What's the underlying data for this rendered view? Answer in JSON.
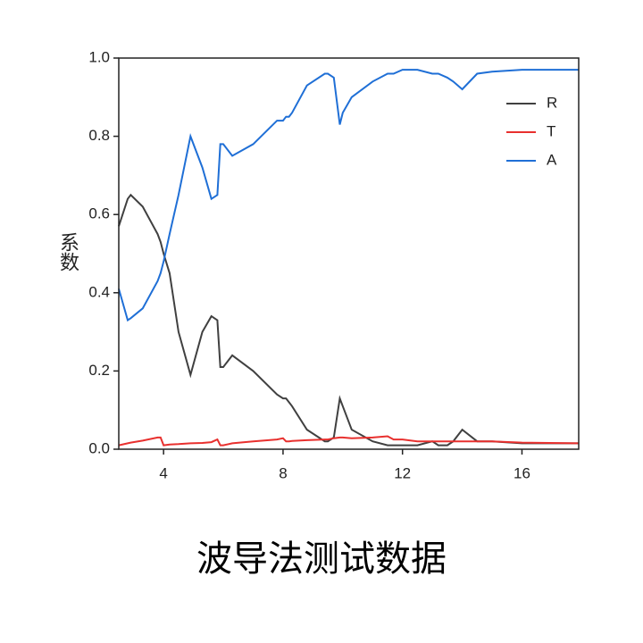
{
  "chart_data": {
    "type": "line",
    "title": "波导法测试数据",
    "y_label": "系数",
    "x": [
      2.5,
      2.8,
      2.9,
      3.3,
      3.8,
      3.9,
      4.0,
      4.2,
      4.5,
      4.9,
      5.3,
      5.6,
      5.8,
      5.9,
      6.0,
      6.3,
      7.0,
      7.8,
      8.0,
      8.1,
      8.2,
      8.3,
      8.8,
      9.4,
      9.5,
      9.7,
      9.9,
      10.0,
      10.3,
      11.0,
      11.5,
      11.7,
      12.0,
      12.5,
      13.0,
      13.2,
      13.5,
      13.7,
      14.0,
      14.5,
      15.0,
      16.0,
      17.9
    ],
    "series": [
      {
        "name": "R",
        "color": "#404040",
        "values": [
          0.57,
          0.64,
          0.65,
          0.62,
          0.55,
          0.53,
          0.5,
          0.45,
          0.3,
          0.19,
          0.3,
          0.34,
          0.33,
          0.21,
          0.21,
          0.24,
          0.2,
          0.14,
          0.13,
          0.13,
          0.12,
          0.11,
          0.05,
          0.02,
          0.02,
          0.03,
          0.13,
          0.11,
          0.05,
          0.02,
          0.01,
          0.01,
          0.01,
          0.01,
          0.02,
          0.01,
          0.01,
          0.02,
          0.05,
          0.02,
          0.02,
          0.015,
          0.015
        ]
      },
      {
        "name": "T",
        "color": "#e8302e",
        "values": [
          0.01,
          0.015,
          0.017,
          0.022,
          0.03,
          0.03,
          0.01,
          0.012,
          0.013,
          0.015,
          0.016,
          0.018,
          0.025,
          0.01,
          0.01,
          0.015,
          0.02,
          0.025,
          0.028,
          0.02,
          0.02,
          0.021,
          0.023,
          0.025,
          0.025,
          0.028,
          0.03,
          0.03,
          0.028,
          0.03,
          0.033,
          0.025,
          0.025,
          0.02,
          0.02,
          0.02,
          0.02,
          0.02,
          0.02,
          0.02,
          0.02,
          0.017,
          0.015
        ]
      },
      {
        "name": "A",
        "color": "#1f6fd6",
        "values": [
          0.41,
          0.33,
          0.335,
          0.36,
          0.43,
          0.45,
          0.48,
          0.55,
          0.65,
          0.8,
          0.72,
          0.64,
          0.65,
          0.78,
          0.78,
          0.75,
          0.78,
          0.84,
          0.84,
          0.85,
          0.85,
          0.86,
          0.93,
          0.96,
          0.96,
          0.95,
          0.83,
          0.86,
          0.9,
          0.94,
          0.96,
          0.96,
          0.97,
          0.97,
          0.96,
          0.96,
          0.95,
          0.94,
          0.92,
          0.96,
          0.965,
          0.97,
          0.97
        ]
      }
    ],
    "xlim": [
      2.5,
      17.9
    ],
    "xticks": [
      4,
      8,
      12,
      16
    ],
    "ylim": [
      0,
      1
    ],
    "yticks": [
      {
        "value": 0,
        "label": "0.0"
      },
      0.2,
      0.4,
      0.6,
      0.8,
      {
        "value": 1,
        "label": "1.0"
      }
    ],
    "legend": "upper right"
  }
}
